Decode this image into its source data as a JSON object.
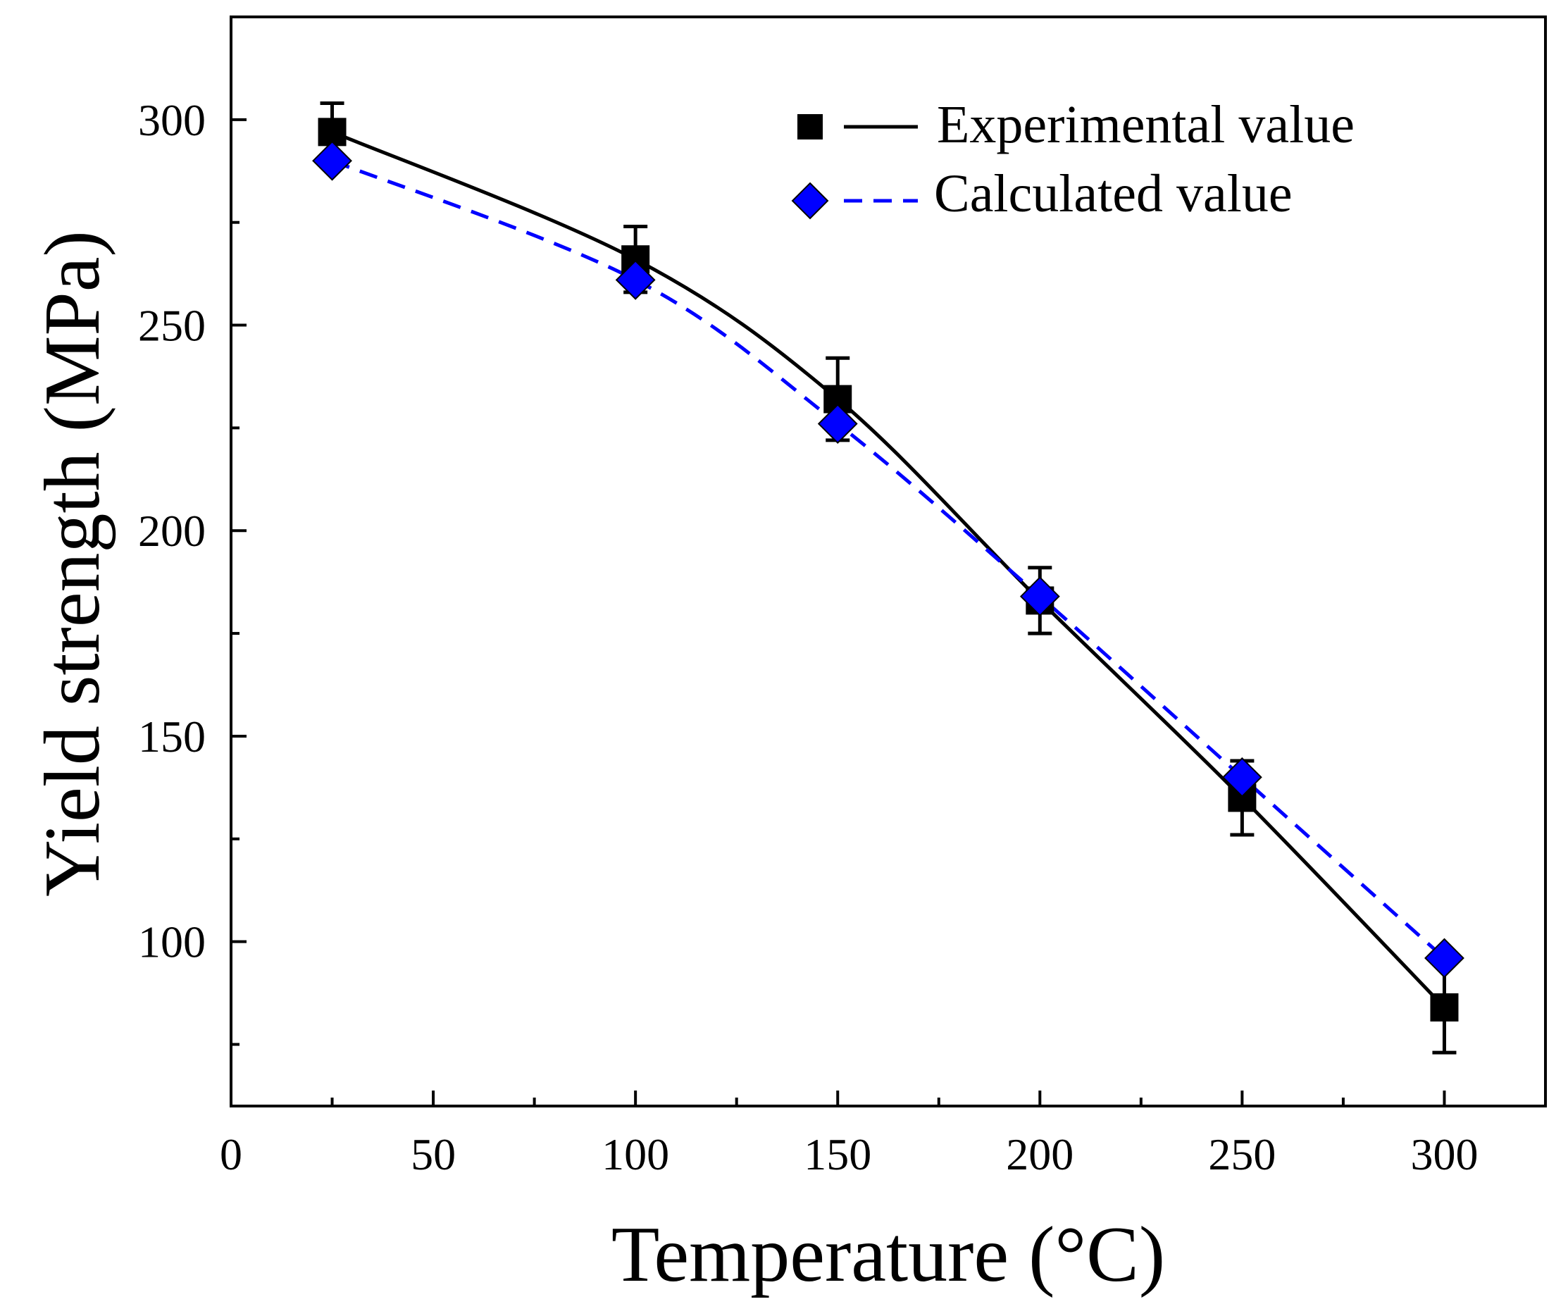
{
  "chart_data": {
    "type": "line",
    "title": "",
    "xlabel": "Temperature (°C)",
    "ylabel": "Yield strength (MPa)",
    "xlim": [
      0,
      325
    ],
    "ylim": [
      60,
      325
    ],
    "x_major_ticks": [
      0,
      50,
      100,
      150,
      200,
      250,
      300
    ],
    "x_minor_ticks": [
      25,
      75,
      125,
      175,
      225,
      275
    ],
    "y_major_ticks": [
      100,
      150,
      200,
      250,
      300
    ],
    "y_minor_ticks": [
      75,
      125,
      175,
      225,
      275
    ],
    "x_tick_labels": [
      "0",
      "50",
      "100",
      "150",
      "200",
      "250",
      "300"
    ],
    "y_tick_labels": [
      "100",
      "150",
      "200",
      "250",
      "300"
    ],
    "legend_position": "top-right",
    "series": [
      {
        "name": "Experimental value",
        "marker": "square",
        "line": "solid",
        "color": "#000000",
        "x": [
          25,
          100,
          150,
          200,
          250,
          300
        ],
        "y": [
          297,
          266,
          232,
          183,
          135,
          84
        ],
        "error": [
          7,
          8,
          10,
          8,
          9,
          11
        ]
      },
      {
        "name": "Calculated value",
        "marker": "diamond",
        "line": "dashed",
        "color": "#0000ff",
        "x": [
          25,
          100,
          150,
          200,
          250,
          300
        ],
        "y": [
          290,
          261,
          226,
          184,
          140,
          96
        ]
      }
    ]
  }
}
